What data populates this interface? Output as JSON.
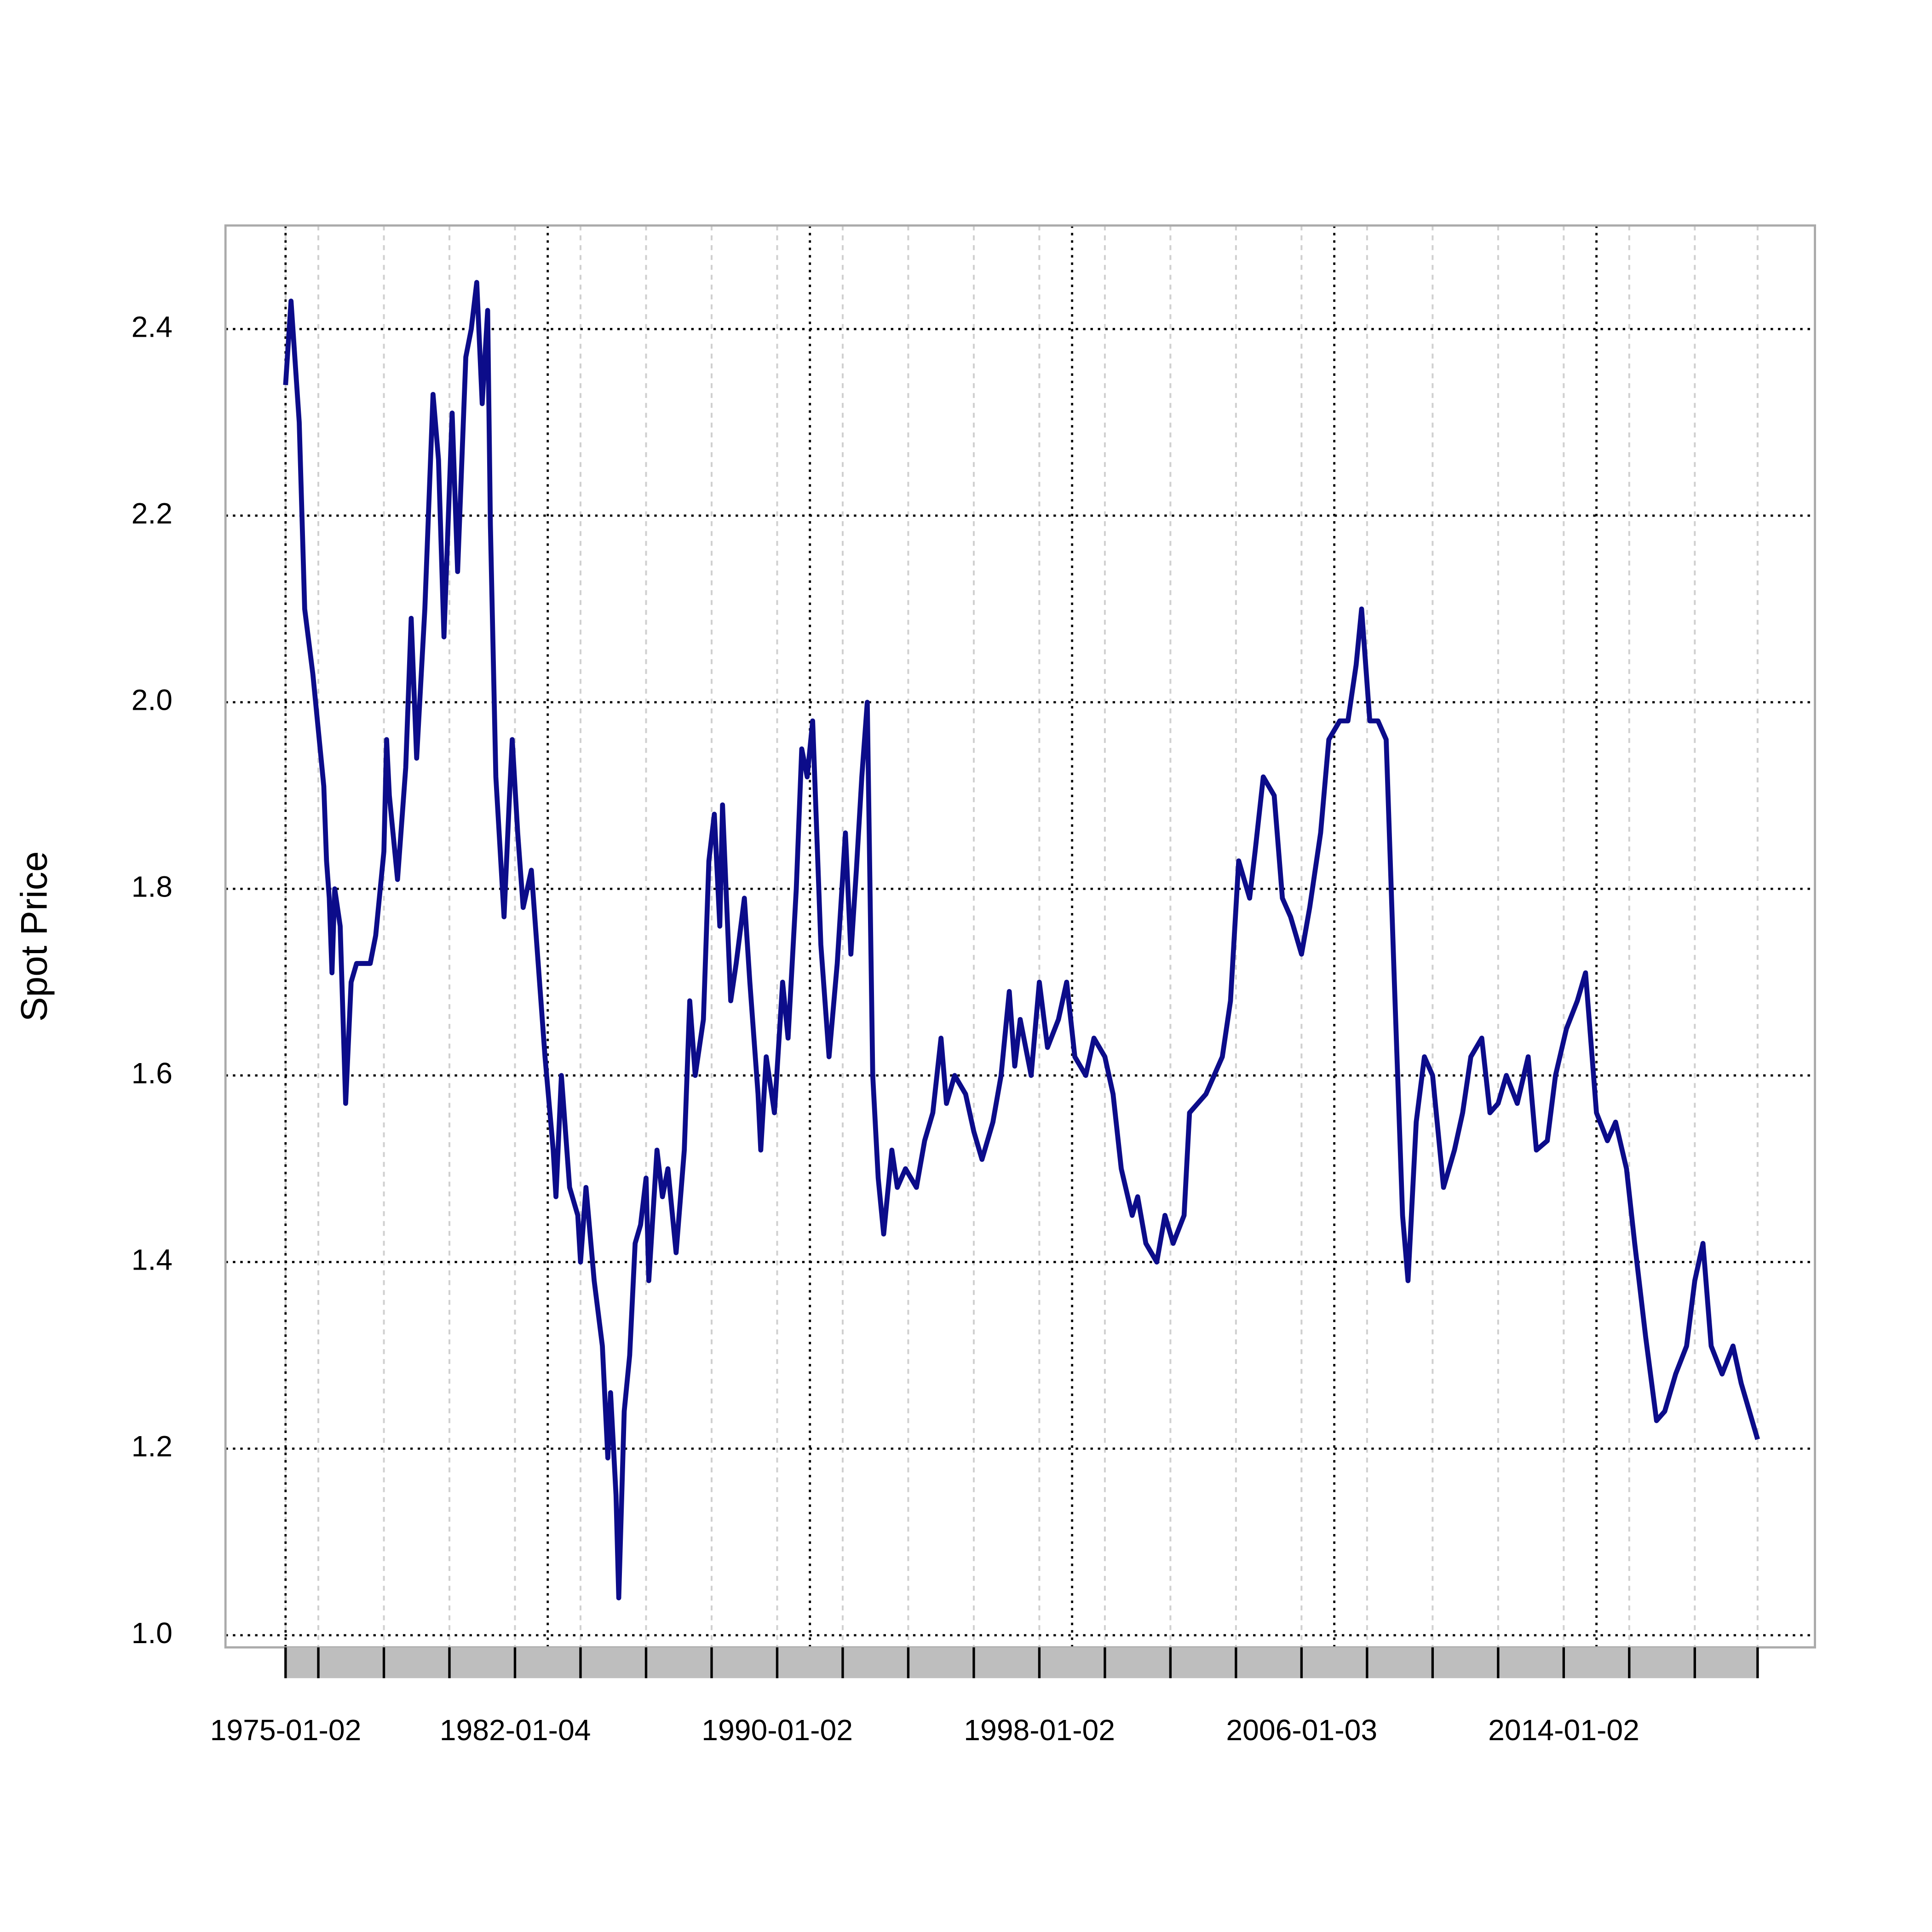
{
  "chart_data": {
    "type": "line",
    "ylabel": "Spot Price",
    "x": [
      "1975-01",
      "1975-03",
      "1975-06",
      "1975-08",
      "1975-11",
      "1976-03",
      "1976-04",
      "1976-05",
      "1976-06",
      "1976-07",
      "1976-09",
      "1976-11",
      "1977-01",
      "1977-03",
      "1977-08",
      "1977-10",
      "1978-01",
      "1978-02",
      "1978-03",
      "1978-06",
      "1978-09",
      "1978-11",
      "1979-01",
      "1979-04",
      "1979-07",
      "1979-09",
      "1979-11",
      "1980-02",
      "1980-04",
      "1980-07",
      "1980-09",
      "1980-11",
      "1981-01",
      "1981-03",
      "1981-04",
      "1981-06",
      "1981-09",
      "1981-11",
      "1981-12",
      "1982-02",
      "1982-04",
      "1982-07",
      "1982-10",
      "1982-12",
      "1983-03",
      "1983-04",
      "1983-06",
      "1983-09",
      "1983-12",
      "1984-01",
      "1984-03",
      "1984-06",
      "1984-09",
      "1984-11",
      "1984-12",
      "1985-02",
      "1985-03",
      "1985-05",
      "1985-07",
      "1985-09",
      "1985-11",
      "1986-01",
      "1986-02",
      "1986-05",
      "1986-07",
      "1986-09",
      "1986-12",
      "1987-03",
      "1987-05",
      "1987-07",
      "1987-10",
      "1987-12",
      "1988-02",
      "1988-04",
      "1988-05",
      "1988-08",
      "1988-10",
      "1989-01",
      "1989-03",
      "1989-06",
      "1989-07",
      "1989-09",
      "1989-12",
      "1990-03",
      "1990-05",
      "1990-08",
      "1990-10",
      "1990-12",
      "1991-02",
      "1991-05",
      "1991-08",
      "1991-11",
      "1992-02",
      "1992-04",
      "1992-06",
      "1992-08",
      "1992-10",
      "1992-12",
      "1993-02",
      "1993-04",
      "1993-07",
      "1993-09",
      "1993-12",
      "1994-04",
      "1994-07",
      "1994-10",
      "1995-01",
      "1995-03",
      "1995-06",
      "1995-10",
      "1996-01",
      "1996-04",
      "1996-08",
      "1996-11",
      "1997-02",
      "1997-04",
      "1997-06",
      "1997-10",
      "1998-01",
      "1998-04",
      "1998-08",
      "1998-11",
      "1999-02",
      "1999-06",
      "1999-09",
      "2000-01",
      "2000-04",
      "2000-07",
      "2000-11",
      "2001-01",
      "2001-04",
      "2001-08",
      "2001-11",
      "2002-02",
      "2002-06",
      "2002-08",
      "2002-11",
      "2003-02",
      "2003-05",
      "2003-08",
      "2003-11",
      "2004-02",
      "2004-06",
      "2004-08",
      "2004-11",
      "2005-03",
      "2005-06",
      "2005-09",
      "2006-01",
      "2006-04",
      "2006-08",
      "2006-11",
      "2007-03",
      "2007-06",
      "2007-09",
      "2007-11",
      "2008-02",
      "2008-05",
      "2008-08",
      "2008-11",
      "2009-02",
      "2009-04",
      "2009-07",
      "2009-10",
      "2010-01",
      "2010-05",
      "2010-09",
      "2010-12",
      "2011-03",
      "2011-07",
      "2011-10",
      "2012-01",
      "2012-04",
      "2012-08",
      "2012-12",
      "2013-03",
      "2013-07",
      "2013-10",
      "2014-02",
      "2014-06",
      "2014-09",
      "2015-01",
      "2015-05",
      "2015-08",
      "2015-12",
      "2016-03",
      "2016-07",
      "2016-11",
      "2017-02",
      "2017-06",
      "2017-10",
      "2018-01",
      "2018-04",
      "2018-07",
      "2018-11",
      "2019-03",
      "2019-06",
      "2019-10",
      "2019-12"
    ],
    "series": [
      {
        "color": "#0c0c8a",
        "values": [
          2.34,
          2.43,
          2.3,
          2.1,
          2.03,
          1.91,
          1.83,
          1.79,
          1.71,
          1.8,
          1.76,
          1.57,
          1.7,
          1.72,
          1.72,
          1.75,
          1.84,
          1.96,
          1.9,
          1.81,
          1.93,
          2.09,
          1.94,
          2.1,
          2.33,
          2.26,
          2.07,
          2.31,
          2.14,
          2.37,
          2.4,
          2.45,
          2.32,
          2.42,
          2.19,
          1.92,
          1.77,
          1.9,
          1.96,
          1.86,
          1.78,
          1.82,
          1.7,
          1.62,
          1.52,
          1.47,
          1.6,
          1.48,
          1.45,
          1.4,
          1.48,
          1.38,
          1.31,
          1.19,
          1.26,
          1.15,
          1.04,
          1.24,
          1.3,
          1.42,
          1.44,
          1.49,
          1.38,
          1.52,
          1.47,
          1.5,
          1.41,
          1.52,
          1.68,
          1.6,
          1.66,
          1.83,
          1.88,
          1.76,
          1.89,
          1.68,
          1.72,
          1.79,
          1.7,
          1.58,
          1.52,
          1.62,
          1.56,
          1.7,
          1.64,
          1.8,
          1.95,
          1.92,
          1.98,
          1.74,
          1.62,
          1.72,
          1.86,
          1.73,
          1.82,
          1.92,
          2.0,
          1.6,
          1.49,
          1.43,
          1.52,
          1.48,
          1.5,
          1.48,
          1.53,
          1.56,
          1.64,
          1.57,
          1.6,
          1.58,
          1.54,
          1.51,
          1.55,
          1.6,
          1.69,
          1.61,
          1.66,
          1.6,
          1.7,
          1.63,
          1.66,
          1.7,
          1.62,
          1.6,
          1.64,
          1.62,
          1.58,
          1.5,
          1.45,
          1.47,
          1.42,
          1.4,
          1.45,
          1.42,
          1.45,
          1.56,
          1.57,
          1.58,
          1.6,
          1.62,
          1.68,
          1.83,
          1.79,
          1.84,
          1.92,
          1.9,
          1.79,
          1.77,
          1.73,
          1.78,
          1.86,
          1.96,
          1.98,
          1.98,
          2.04,
          2.1,
          1.98,
          1.98,
          1.96,
          1.7,
          1.45,
          1.38,
          1.55,
          1.62,
          1.6,
          1.48,
          1.52,
          1.56,
          1.62,
          1.64,
          1.56,
          1.57,
          1.6,
          1.57,
          1.62,
          1.52,
          1.53,
          1.6,
          1.65,
          1.68,
          1.71,
          1.56,
          1.53,
          1.55,
          1.5,
          1.42,
          1.32,
          1.23,
          1.24,
          1.28,
          1.31,
          1.38,
          1.42,
          1.31,
          1.28,
          1.31,
          1.27,
          1.23,
          1.21
        ]
      }
    ],
    "xlim": [
      "1973-03",
      "2021-09"
    ],
    "xticks": [
      "1975-01-02",
      "1982-01-04",
      "1990-01-02",
      "1998-01-02",
      "2006-01-03",
      "2014-01-02"
    ],
    "xgrid": [
      "1975-01",
      "1983-01",
      "1991-01",
      "1999-01",
      "2007-01",
      "2015-01"
    ],
    "xminor": [
      "1975-01",
      "1976-01",
      "1978-01",
      "1980-01",
      "1982-01",
      "1984-01",
      "1986-01",
      "1988-01",
      "1990-01",
      "1992-01",
      "1994-01",
      "1996-01",
      "1998-01",
      "2000-01",
      "2002-01",
      "2004-01",
      "2006-01",
      "2008-01",
      "2010-01",
      "2012-01",
      "2014-01",
      "2016-01",
      "2018-01",
      "2019-12"
    ],
    "ylim": [
      0.987,
      2.511
    ],
    "yticks": [
      {
        "value": 1,
        "label": "1.0"
      },
      1.2,
      1.4,
      1.6,
      1.8,
      {
        "value": 2,
        "label": "2.0"
      },
      2.2,
      2.4
    ],
    "grid": true
  }
}
